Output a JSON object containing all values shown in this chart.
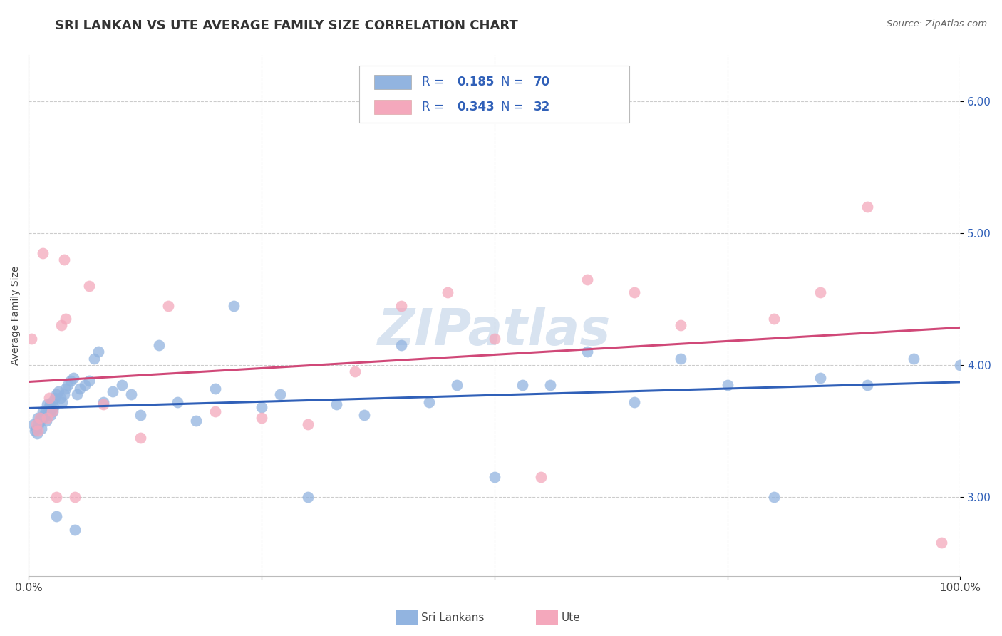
{
  "title": "SRI LANKAN VS UTE AVERAGE FAMILY SIZE CORRELATION CHART",
  "source": "Source: ZipAtlas.com",
  "ylabel": "Average Family Size",
  "legend_label1": "Sri Lankans",
  "legend_label2": "Ute",
  "r1": 0.185,
  "n1": 70,
  "r2": 0.343,
  "n2": 32,
  "color1": "#92b4e0",
  "color2": "#f4a8bc",
  "line_color1": "#3060b8",
  "line_color2": "#d04878",
  "legend_text_color": "#3060b8",
  "xlim": [
    0,
    1
  ],
  "ylim": [
    2.4,
    6.35
  ],
  "yticks": [
    3.0,
    4.0,
    5.0,
    6.0
  ],
  "xticks": [
    0,
    0.25,
    0.5,
    0.75,
    1.0
  ],
  "xticklabels": [
    "0.0%",
    "",
    "",
    "",
    "100.0%"
  ],
  "sri_lankans_x": [
    0.005,
    0.007,
    0.008,
    0.009,
    0.01,
    0.011,
    0.012,
    0.013,
    0.014,
    0.015,
    0.016,
    0.017,
    0.018,
    0.019,
    0.02,
    0.021,
    0.022,
    0.023,
    0.024,
    0.025,
    0.026,
    0.027,
    0.028,
    0.03,
    0.032,
    0.034,
    0.036,
    0.038,
    0.04,
    0.042,
    0.045,
    0.048,
    0.052,
    0.055,
    0.06,
    0.065,
    0.07,
    0.075,
    0.08,
    0.09,
    0.1,
    0.11,
    0.12,
    0.14,
    0.16,
    0.18,
    0.2,
    0.22,
    0.25,
    0.27,
    0.3,
    0.33,
    0.36,
    0.4,
    0.43,
    0.46,
    0.5,
    0.53,
    0.56,
    0.6,
    0.65,
    0.7,
    0.75,
    0.8,
    0.85,
    0.9,
    0.95,
    1.0,
    0.03,
    0.05
  ],
  "sri_lankans_y": [
    3.55,
    3.5,
    3.52,
    3.48,
    3.6,
    3.55,
    3.58,
    3.6,
    3.52,
    3.65,
    3.6,
    3.62,
    3.65,
    3.58,
    3.7,
    3.65,
    3.68,
    3.7,
    3.62,
    3.72,
    3.65,
    3.68,
    3.75,
    3.78,
    3.8,
    3.75,
    3.72,
    3.78,
    3.82,
    3.85,
    3.88,
    3.9,
    3.78,
    3.82,
    3.85,
    3.88,
    4.05,
    4.1,
    3.72,
    3.8,
    3.85,
    3.78,
    3.62,
    4.15,
    3.72,
    3.58,
    3.82,
    4.45,
    3.68,
    3.78,
    3.0,
    3.7,
    3.62,
    4.15,
    3.72,
    3.85,
    3.15,
    3.85,
    3.85,
    4.1,
    3.72,
    4.05,
    3.85,
    3.0,
    3.9,
    3.85,
    4.05,
    4.0,
    2.85,
    2.75
  ],
  "ute_x": [
    0.003,
    0.008,
    0.01,
    0.012,
    0.015,
    0.02,
    0.022,
    0.025,
    0.03,
    0.035,
    0.038,
    0.04,
    0.05,
    0.065,
    0.08,
    0.12,
    0.15,
    0.2,
    0.25,
    0.3,
    0.35,
    0.4,
    0.45,
    0.5,
    0.55,
    0.6,
    0.65,
    0.7,
    0.8,
    0.85,
    0.9,
    0.98
  ],
  "ute_y": [
    4.2,
    3.55,
    3.5,
    3.6,
    4.85,
    3.6,
    3.75,
    3.65,
    3.0,
    4.3,
    4.8,
    4.35,
    3.0,
    4.6,
    3.7,
    3.45,
    4.45,
    3.65,
    3.6,
    3.55,
    3.95,
    4.45,
    4.55,
    4.2,
    3.15,
    4.65,
    4.55,
    4.3,
    4.35,
    4.55,
    5.2,
    2.65
  ],
  "watermark": "ZIPatlas",
  "title_fontsize": 13,
  "axis_label_fontsize": 10,
  "tick_fontsize": 11,
  "background_color": "#ffffff",
  "grid_color": "#cccccc"
}
